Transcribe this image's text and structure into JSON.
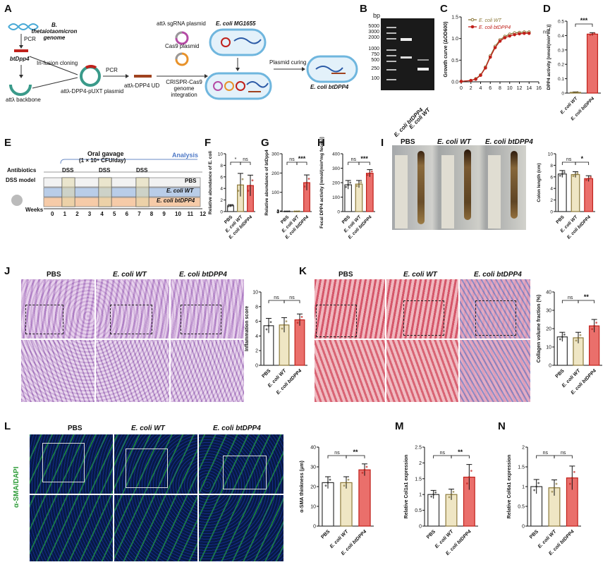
{
  "panel_labels": [
    "A",
    "B",
    "C",
    "D",
    "E",
    "F",
    "G",
    "H",
    "I",
    "J",
    "K",
    "L",
    "M",
    "N"
  ],
  "panel_a": {
    "genome_label": "B. thetaiotaomicron genome",
    "pcr1": "PCR",
    "bt_gene": "btDpp4",
    "infusion": "In-fusion cloning",
    "backbone": "attλ backbone",
    "plasmid": "attλ-DPP4-pUXT plasmid",
    "pcr2": "PCR",
    "ud": "attλ-DPP4 UD",
    "sgrna": "attλ sgRNA plasmid",
    "cas9": "Cas9 plasmid",
    "crispr": "CRISPR-Cas9 genome integration",
    "mg1655": "E. coli MG1655",
    "curing": "Plasmid curing",
    "btdpp4": "E. coli btDPP4"
  },
  "panel_b": {
    "unit": "bp",
    "ladder": [
      "5000",
      "3000",
      "2000",
      "1000",
      "750",
      "500",
      "250",
      "100"
    ],
    "lanes": [
      "E. coli btDPP4",
      "E. coli WT"
    ]
  },
  "panel_e": {
    "gavage": "Oral gavage",
    "dose": "(1 × 10⁹ CFU/day)",
    "analysis": "Analysis",
    "antibiotics": "Antibiotics",
    "dss_labels": [
      "DSS",
      "DSS",
      "DSS"
    ],
    "model": "DSS model",
    "weeks_label": "Weeks",
    "weeks": [
      "0",
      "1",
      "2",
      "3",
      "4",
      "5",
      "6",
      "7",
      "8",
      "9",
      "10",
      "11",
      "12"
    ],
    "groups": [
      "PBS",
      "E. coli WT",
      "E. coli btDPP4"
    ],
    "colors": [
      "#f2f2f2",
      "#b9cde8",
      "#f6cba8"
    ]
  },
  "panel_i": {
    "photo_labels": [
      "PBS",
      "E. coli WT",
      "E. coli btDPP4"
    ]
  },
  "panel_j": {
    "photo_labels": [
      "PBS",
      "E. coli WT",
      "E. coli btDPP4"
    ]
  },
  "panel_k": {
    "photo_labels": [
      "PBS",
      "E. coli WT",
      "E. coli btDPP4"
    ]
  },
  "panel_l": {
    "photo_labels": [
      "PBS",
      "E. coli WT",
      "E. coli btDPP4"
    ],
    "stain": "α-SMA/DAPI"
  },
  "colors": {
    "pbs": "#ffffff",
    "wt": "#efe6c4",
    "bt": "#ea6f6b",
    "bt_dark": "#c0211b",
    "wt_line": "#8d7a3c"
  },
  "chart_data": [
    {
      "panel": "C",
      "type": "line",
      "title": "",
      "xlabel": "",
      "ylabel": "Growth curve (ΔOD600)",
      "xlim": [
        0,
        16
      ],
      "ylim": [
        0,
        1.5
      ],
      "xticks": [
        0,
        2,
        4,
        6,
        8,
        10,
        12,
        14,
        16
      ],
      "yticks": [
        0,
        0.5,
        1.0,
        1.5
      ],
      "legend": "top-left",
      "annotation": "ns",
      "x": [
        0,
        2,
        3,
        4,
        5,
        6,
        7,
        8,
        9,
        10,
        11,
        12,
        13,
        14
      ],
      "series": [
        {
          "name": "E. coli WT",
          "values": [
            0.01,
            0.03,
            0.07,
            0.16,
            0.34,
            0.6,
            0.82,
            0.97,
            1.05,
            1.1,
            1.13,
            1.14,
            1.15,
            1.15
          ]
        },
        {
          "name": "E. coli btDPP4",
          "values": [
            0.01,
            0.03,
            0.06,
            0.15,
            0.32,
            0.57,
            0.79,
            0.94,
            1.02,
            1.06,
            1.09,
            1.11,
            1.12,
            1.12
          ]
        }
      ]
    },
    {
      "panel": "D",
      "type": "bar",
      "ylabel": "DPP4 activity [nmol/(min*mL)]",
      "ylim": [
        0,
        0.5
      ],
      "yticks": [
        0,
        0.1,
        0.2,
        0.3,
        0.4,
        0.5
      ],
      "categories": [
        "E. coli WT",
        "E. coli btDPP4"
      ],
      "values": [
        0.005,
        0.41
      ],
      "errors": [
        0.003,
        0.01
      ],
      "significance": [
        "***"
      ]
    },
    {
      "panel": "F",
      "type": "bar",
      "ylabel": "Relative abundance of E. coli",
      "ylim": [
        0,
        10
      ],
      "yticks": [
        0,
        2,
        4,
        6,
        8,
        10
      ],
      "categories": [
        "PBS",
        "E. coli WT",
        "E. coli btDPP4"
      ],
      "values": [
        1.0,
        4.6,
        4.5
      ],
      "errors": [
        0.2,
        2.0,
        1.8
      ],
      "significance": [
        "*",
        "ns"
      ]
    },
    {
      "panel": "G",
      "type": "bar",
      "ylabel": "Relative abundance of btDpp4",
      "ylim": [
        0,
        300
      ],
      "yticks": [
        0,
        1,
        2,
        3,
        100,
        200,
        300
      ],
      "categories": [
        "PBS",
        "E. coli WT",
        "E. coli btDPP4"
      ],
      "values": [
        1.0,
        1.0,
        150
      ],
      "errors": [
        0.3,
        0.3,
        40
      ],
      "significance": [
        "ns",
        "***"
      ]
    },
    {
      "panel": "H",
      "type": "bar",
      "ylabel": "Fecal DPP4 activity [nmol/(min*mg feces)]",
      "ylim": [
        0,
        400
      ],
      "yticks": [
        0,
        100,
        200,
        300,
        400
      ],
      "categories": [
        "PBS",
        "E. coli WT",
        "E. coli btDPP4"
      ],
      "values": [
        185,
        190,
        265
      ],
      "errors": [
        30,
        25,
        25
      ],
      "significance": [
        "ns",
        "***"
      ]
    },
    {
      "panel": "I",
      "type": "bar",
      "ylabel": "Colon length (cm)",
      "ylim": [
        0,
        10
      ],
      "yticks": [
        0,
        2,
        4,
        6,
        8,
        10
      ],
      "categories": [
        "PBS",
        "E. coli WT",
        "E. coli btDPP4"
      ],
      "values": [
        6.5,
        6.4,
        5.7
      ],
      "errors": [
        0.6,
        0.5,
        0.5
      ],
      "significance": [
        "ns",
        "*"
      ]
    },
    {
      "panel": "J",
      "type": "bar",
      "ylabel": "Inflammation score",
      "ylim": [
        0,
        10
      ],
      "yticks": [
        0,
        2,
        4,
        6,
        8,
        10
      ],
      "categories": [
        "PBS",
        "E. coli WT",
        "E. coli btDPP4"
      ],
      "values": [
        5.4,
        5.5,
        6.2
      ],
      "errors": [
        1.0,
        1.0,
        0.8
      ],
      "significance": [
        "ns",
        "ns"
      ]
    },
    {
      "panel": "K",
      "type": "bar",
      "ylabel": "Collagen volume fraction (%)",
      "ylim": [
        0,
        40
      ],
      "yticks": [
        0,
        10,
        20,
        30,
        40
      ],
      "categories": [
        "PBS",
        "E. coli WT",
        "E. coli btDPP4"
      ],
      "values": [
        15.5,
        15.0,
        21.5
      ],
      "errors": [
        2.5,
        3.0,
        3.5
      ],
      "significance": [
        "ns",
        "**"
      ]
    },
    {
      "panel": "L",
      "type": "bar",
      "ylabel": "α-SMA thinkness (μm)",
      "ylim": [
        0,
        40
      ],
      "yticks": [
        0,
        10,
        20,
        30,
        40
      ],
      "categories": [
        "PBS",
        "E. coli WT",
        "E. coli btDPP4"
      ],
      "values": [
        22,
        22,
        28.5
      ],
      "errors": [
        3,
        3,
        3
      ],
      "significance": [
        "ns",
        "**"
      ]
    },
    {
      "panel": "M",
      "type": "bar",
      "ylabel": "Relative Col1a1 expression",
      "ylim": [
        0,
        2.5
      ],
      "yticks": [
        0,
        0.5,
        1.0,
        1.5,
        2.0,
        2.5
      ],
      "categories": [
        "PBS",
        "E. coli WT",
        "E. coli btDPP4"
      ],
      "values": [
        1.0,
        1.0,
        1.55
      ],
      "errors": [
        0.13,
        0.17,
        0.4
      ],
      "significance": [
        "ns",
        "**"
      ]
    },
    {
      "panel": "N",
      "type": "bar",
      "ylabel": "Relative Col6a1 expression",
      "ylim": [
        0,
        2.0
      ],
      "yticks": [
        0,
        0.5,
        1.0,
        1.5,
        2.0
      ],
      "categories": [
        "PBS",
        "E. coli WT",
        "E. coli btDPP4"
      ],
      "values": [
        1.0,
        0.97,
        1.22
      ],
      "errors": [
        0.18,
        0.2,
        0.3
      ],
      "significance": [
        "ns",
        "ns"
      ]
    }
  ]
}
